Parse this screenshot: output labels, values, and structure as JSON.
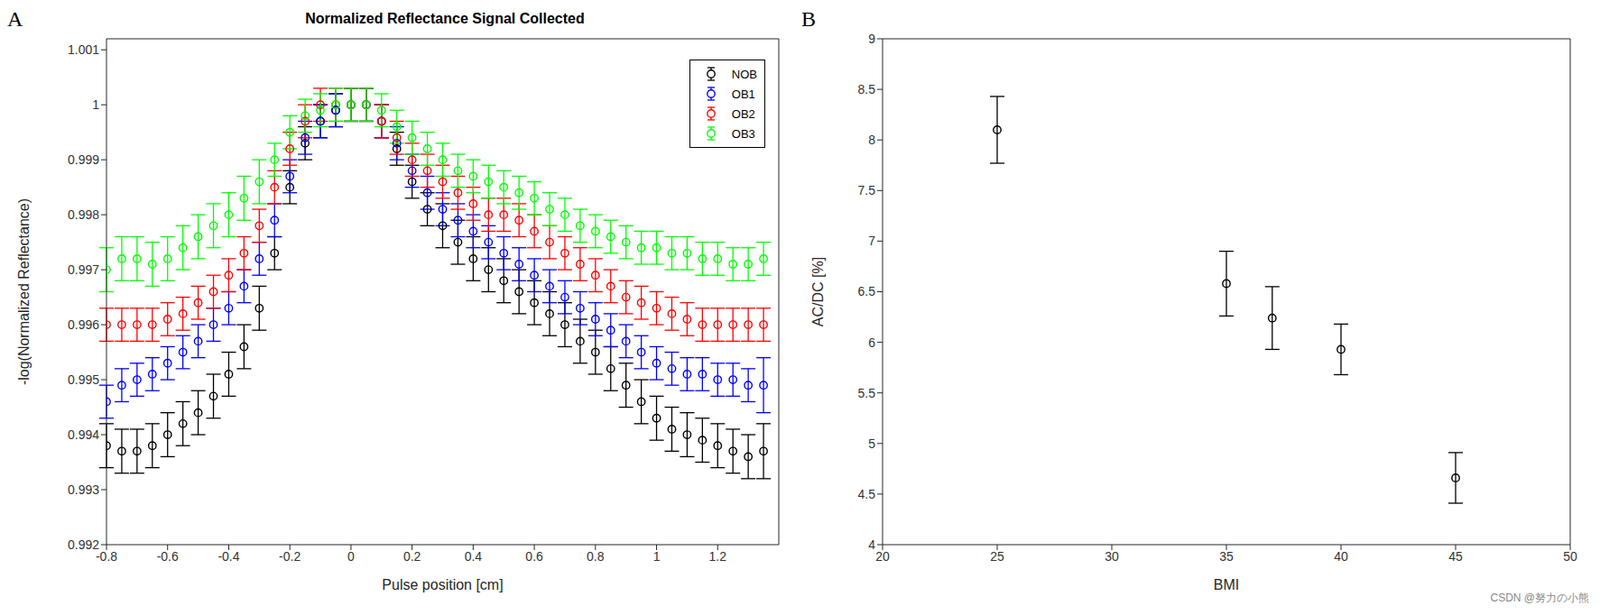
{
  "chart_data": [
    {
      "type": "scatter",
      "title": "Normalized Reflectance Signal Collected",
      "annotations": [
        "A"
      ],
      "x_label": "Pulse position [cm]",
      "y_label": "-log(Normalized Reflectance)",
      "x": [
        -0.8,
        -0.75,
        -0.7,
        -0.65,
        -0.6,
        -0.55,
        -0.5,
        -0.45,
        -0.4,
        -0.35,
        -0.3,
        -0.25,
        -0.2,
        -0.15,
        -0.1,
        -0.05,
        0,
        0.05,
        0.1,
        0.15,
        0.2,
        0.25,
        0.3,
        0.35,
        0.4,
        0.45,
        0.5,
        0.55,
        0.6,
        0.65,
        0.7,
        0.75,
        0.8,
        0.85,
        0.9,
        0.95,
        1,
        1.05,
        1.1,
        1.15,
        1.2,
        1.25,
        1.3,
        1.35
      ],
      "xlim": [
        -0.8,
        1.4
      ],
      "xticks": [
        -0.8,
        -0.6,
        -0.4,
        -0.2,
        0,
        0.2,
        0.4,
        0.6,
        0.8,
        1,
        1.2
      ],
      "ylim": [
        0.992,
        1.0012
      ],
      "yticks": [
        0.992,
        0.993,
        0.994,
        0.995,
        0.996,
        0.997,
        0.998,
        0.999,
        1,
        1.001
      ],
      "legend": "upper right",
      "marker": "circle",
      "series": [
        {
          "name": "NOB",
          "color": "#000000",
          "values": [
            0.9938,
            0.9937,
            0.9937,
            0.9938,
            0.994,
            0.9942,
            0.9944,
            0.9947,
            0.9951,
            0.9956,
            0.9963,
            0.9973,
            0.9985,
            0.9993,
            0.9997,
            0.9999,
            1.0,
            1.0,
            0.9997,
            0.9992,
            0.9986,
            0.9981,
            0.9978,
            0.9975,
            0.9972,
            0.997,
            0.9968,
            0.9966,
            0.9964,
            0.9962,
            0.996,
            0.9957,
            0.9955,
            0.9952,
            0.9949,
            0.9946,
            0.9943,
            0.9941,
            0.994,
            0.9939,
            0.9938,
            0.9937,
            0.9936,
            0.9937
          ],
          "errors": [
            0.0004,
            0.0004,
            0.0004,
            0.0004,
            0.0004,
            0.0004,
            0.0004,
            0.0004,
            0.0004,
            0.0004,
            0.0004,
            0.0003,
            0.0003,
            0.0003,
            0.0003,
            0.0003,
            0.0003,
            0.0003,
            0.0003,
            0.0003,
            0.0003,
            0.0003,
            0.0004,
            0.0004,
            0.0004,
            0.0004,
            0.0004,
            0.0004,
            0.0004,
            0.0004,
            0.0004,
            0.0004,
            0.0004,
            0.0004,
            0.0004,
            0.0004,
            0.0004,
            0.0004,
            0.0004,
            0.0004,
            0.0004,
            0.0004,
            0.0004,
            0.0005
          ]
        },
        {
          "name": "OB1",
          "color": "#0000ff",
          "values": [
            0.9946,
            0.9949,
            0.995,
            0.9951,
            0.9953,
            0.9955,
            0.9957,
            0.996,
            0.9963,
            0.9967,
            0.9972,
            0.9979,
            0.9987,
            0.9994,
            0.9997,
            0.9999,
            1.0,
            1.0,
            0.9997,
            0.9993,
            0.9988,
            0.9984,
            0.9981,
            0.9979,
            0.9977,
            0.9975,
            0.9973,
            0.9971,
            0.9969,
            0.9967,
            0.9965,
            0.9963,
            0.9961,
            0.9959,
            0.9957,
            0.9955,
            0.9953,
            0.9952,
            0.9951,
            0.9951,
            0.995,
            0.995,
            0.9949,
            0.9949
          ],
          "errors": [
            0.0003,
            0.0003,
            0.0003,
            0.0003,
            0.0003,
            0.0003,
            0.0003,
            0.0003,
            0.0003,
            0.0003,
            0.0003,
            0.0003,
            0.0003,
            0.0003,
            0.0003,
            0.0003,
            0.0003,
            0.0003,
            0.0003,
            0.0003,
            0.0003,
            0.0003,
            0.0003,
            0.0003,
            0.0003,
            0.0003,
            0.0003,
            0.0003,
            0.0003,
            0.0003,
            0.0003,
            0.0003,
            0.0003,
            0.0003,
            0.0003,
            0.0003,
            0.0003,
            0.0003,
            0.0003,
            0.0003,
            0.0003,
            0.0003,
            0.0003,
            0.0005
          ]
        },
        {
          "name": "OB2",
          "color": "#ff0000",
          "values": [
            0.996,
            0.996,
            0.996,
            0.996,
            0.9961,
            0.9962,
            0.9964,
            0.9966,
            0.9969,
            0.9973,
            0.9978,
            0.9985,
            0.9992,
            0.9997,
            1.0,
            1.0,
            1.0,
            1.0,
            0.9997,
            0.9994,
            0.999,
            0.9988,
            0.9986,
            0.9984,
            0.9982,
            0.998,
            0.998,
            0.9979,
            0.9977,
            0.9975,
            0.9973,
            0.9971,
            0.9969,
            0.9967,
            0.9965,
            0.9964,
            0.9963,
            0.9962,
            0.9961,
            0.996,
            0.996,
            0.996,
            0.996,
            0.996
          ],
          "errors": [
            0.0003,
            0.0003,
            0.0003,
            0.0003,
            0.0003,
            0.0003,
            0.0003,
            0.0003,
            0.0003,
            0.0003,
            0.0003,
            0.0003,
            0.0003,
            0.0003,
            0.0003,
            0.0003,
            0.0003,
            0.0003,
            0.0003,
            0.0003,
            0.0003,
            0.0003,
            0.0003,
            0.0003,
            0.0003,
            0.0003,
            0.0003,
            0.0003,
            0.0003,
            0.0003,
            0.0003,
            0.0003,
            0.0003,
            0.0003,
            0.0003,
            0.0003,
            0.0003,
            0.0003,
            0.0003,
            0.0003,
            0.0003,
            0.0003,
            0.0003,
            0.0003
          ]
        },
        {
          "name": "OB3",
          "color": "#00ff00",
          "values": [
            0.997,
            0.9972,
            0.9972,
            0.9971,
            0.9972,
            0.9974,
            0.9976,
            0.9978,
            0.998,
            0.9983,
            0.9986,
            0.999,
            0.9995,
            0.9998,
            0.9999,
            1.0,
            1.0,
            1.0,
            0.9999,
            0.9996,
            0.9994,
            0.9992,
            0.999,
            0.9988,
            0.9987,
            0.9986,
            0.9985,
            0.9984,
            0.9983,
            0.9981,
            0.998,
            0.9978,
            0.9977,
            0.9976,
            0.9975,
            0.9974,
            0.9974,
            0.9973,
            0.9973,
            0.9972,
            0.9972,
            0.9971,
            0.9971,
            0.9972
          ],
          "errors": [
            0.0004,
            0.0004,
            0.0004,
            0.0004,
            0.0004,
            0.0004,
            0.0004,
            0.0004,
            0.0004,
            0.0004,
            0.0004,
            0.0003,
            0.0003,
            0.0003,
            0.0003,
            0.0003,
            0.0003,
            0.0003,
            0.0003,
            0.0003,
            0.0003,
            0.0003,
            0.0003,
            0.0003,
            0.0003,
            0.0003,
            0.0003,
            0.0003,
            0.0003,
            0.0003,
            0.0003,
            0.0003,
            0.0003,
            0.0003,
            0.0003,
            0.0003,
            0.0003,
            0.0003,
            0.0003,
            0.0003,
            0.0003,
            0.0003,
            0.0003,
            0.0003
          ]
        }
      ]
    },
    {
      "type": "scatter",
      "annotations": [
        "B",
        "CSDN @努力の小熊"
      ],
      "x_label": "BMI",
      "y_label": "AC/DC [%]",
      "x": [
        25,
        35,
        37,
        40,
        45
      ],
      "xlim": [
        20,
        50
      ],
      "xticks": [
        20,
        25,
        30,
        35,
        40,
        45,
        50
      ],
      "ylim": [
        4,
        9
      ],
      "yticks": [
        4,
        4.5,
        5,
        5.5,
        6,
        6.5,
        7,
        7.5,
        8,
        8.5,
        9
      ],
      "marker": "circle",
      "series": [
        {
          "name": "AC/DC",
          "color": "#000000",
          "values": [
            8.1,
            6.58,
            6.24,
            5.93,
            4.66
          ],
          "errors": [
            0.33,
            0.32,
            0.31,
            0.25,
            0.25
          ]
        }
      ]
    }
  ]
}
